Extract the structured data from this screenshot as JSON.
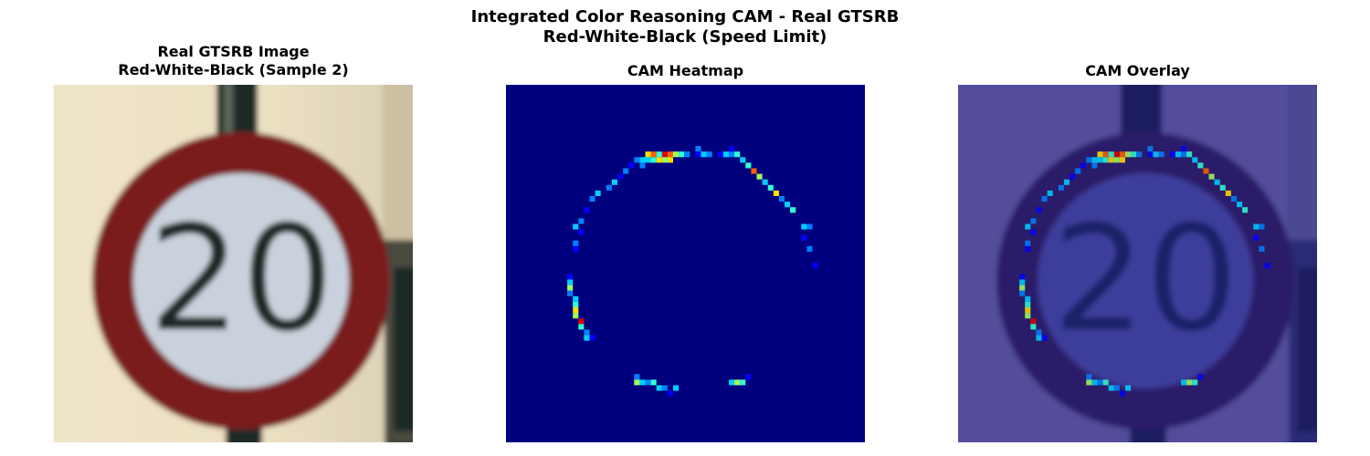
{
  "figure": {
    "title_line1": "Integrated Color Reasoning CAM - Real GTSRB",
    "title_line2": "Red-White-Black (Speed Limit)"
  },
  "panels": [
    {
      "title_line1": "Real GTSRB Image",
      "title_line2": "Red-White-Black (Sample 2)",
      "sign_text": "20"
    },
    {
      "title_line1": "CAM Heatmap"
    },
    {
      "title_line1": "CAM Overlay",
      "sign_text": "20"
    }
  ],
  "colors": {
    "sign_red": "#7a1e1e",
    "sign_face": "#c9d2dc",
    "background_cream": "#ece2c6",
    "pole": "#1f2c26",
    "digits": "#1c2a26",
    "heatmap_background": "#00007f",
    "overlay_tint": "#3c3c9c"
  }
}
